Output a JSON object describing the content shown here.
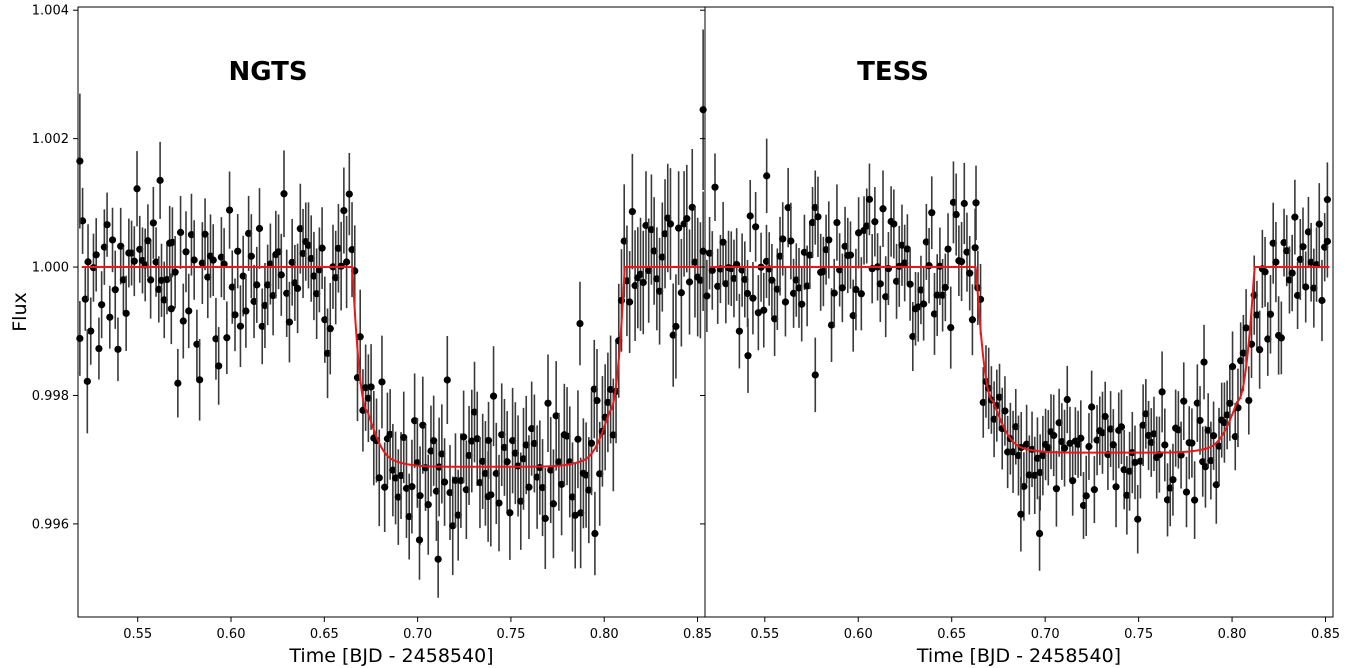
{
  "chart_data": [
    {
      "type": "scatter",
      "title": "NGTS",
      "xlabel": "Time [BJD - 2458540]",
      "ylabel": "Flux",
      "xlim": [
        0.518,
        0.854
      ],
      "ylim": [
        0.99455,
        1.00405
      ],
      "xticks": [
        "0.55",
        "0.60",
        "0.65",
        "0.70",
        "0.75",
        "0.80",
        "0.85"
      ],
      "yticks": [
        "0.996",
        "0.998",
        "1.000",
        "1.002",
        "1.004"
      ],
      "grid": false,
      "transit_model": {
        "t1": 0.665,
        "t4": 0.811,
        "depth": 0.00311,
        "ingress": 0.008,
        "color": "#e41a1c"
      },
      "points": {
        "x_start": 0.519,
        "x_end": 0.853,
        "count": 230,
        "err_start": 0.00053,
        "err_end": 0.00088,
        "scatter": 0.00054,
        "highlights": [
          {
            "x": 0.519,
            "y": 1.00165,
            "err": 0.00105
          },
          {
            "x": 0.523,
            "y": 0.99822,
            "err": 0.00081
          },
          {
            "x": 0.562,
            "y": 1.00135,
            "err": 0.0006
          },
          {
            "x": 0.568,
            "y": 0.99935,
            "err": 0.00055
          },
          {
            "x": 0.701,
            "y": 0.99575,
            "err": 0.00062
          },
          {
            "x": 0.711,
            "y": 0.99545,
            "err": 0.0006
          },
          {
            "x": 0.738,
            "y": 0.9973,
            "err": 0.0006
          },
          {
            "x": 0.787,
            "y": 0.99912,
            "err": 0.00065
          },
          {
            "x": 0.795,
            "y": 0.99585,
            "err": 0.00065
          },
          {
            "x": 0.853,
            "y": 1.00245,
            "err": 0.00125
          }
        ],
        "color": "#000000"
      }
    },
    {
      "type": "scatter",
      "title": "TESS",
      "xlabel": "Time [BJD - 2458540]",
      "ylabel": "",
      "xlim": [
        0.518,
        0.854
      ],
      "ylim": [
        0.99455,
        1.00405
      ],
      "xticks": [
        "0.55",
        "0.60",
        "0.65",
        "0.70",
        "0.75",
        "0.80",
        "0.85"
      ],
      "yticks": [],
      "grid": false,
      "transit_model": {
        "t1": 0.663,
        "t4": 0.812,
        "depth": 0.00289,
        "ingress": 0.009,
        "color": "#e41a1c"
      },
      "points": {
        "x_start": 0.519,
        "x_end": 0.851,
        "count": 230,
        "err_start": 0.00058,
        "err_end": 0.00058,
        "scatter": 0.0005,
        "highlights": [
          {
            "x": 0.541,
            "y": 0.99862,
            "err": 0.00058
          },
          {
            "x": 0.551,
            "y": 1.00142,
            "err": 0.00058
          },
          {
            "x": 0.577,
            "y": 0.99832,
            "err": 0.00058
          },
          {
            "x": 0.663,
            "y": 1.001,
            "err": 0.00058
          },
          {
            "x": 0.687,
            "y": 0.99615,
            "err": 0.00058
          },
          {
            "x": 0.697,
            "y": 0.99585,
            "err": 0.00058
          },
          {
            "x": 0.785,
            "y": 0.99852,
            "err": 0.00058
          },
          {
            "x": 0.851,
            "y": 1.00105,
            "err": 0.00058
          }
        ],
        "color": "#000000"
      }
    }
  ]
}
